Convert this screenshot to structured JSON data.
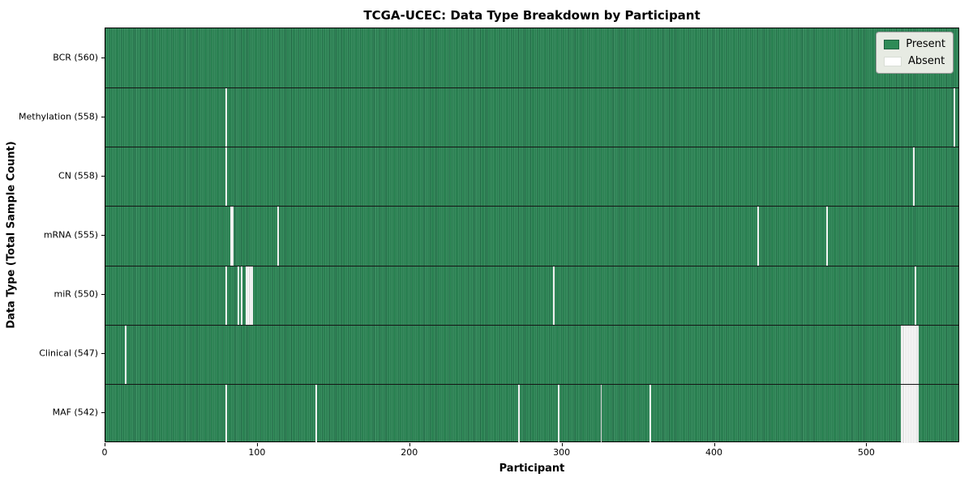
{
  "chart": {
    "title": "TCGA-UCEC: Data Type Breakdown by Participant",
    "xlabel": "Participant",
    "ylabel": "Data Type (Total Sample Count)",
    "legend": {
      "present": "Present",
      "absent": "Absent"
    },
    "x_ticks": [
      0,
      100,
      200,
      300,
      400,
      500
    ],
    "x_axis_max": 561,
    "colors": {
      "present": "#2e8b57",
      "present_edge": "#1e6140",
      "absent": "#ffffff",
      "absent_edge": "#c6c6c6",
      "legend_bg": "#e7ebe3",
      "legend_border": "#9a9a9a"
    }
  },
  "chart_data": {
    "type": "heatmap",
    "title": "TCGA-UCEC: Data Type Breakdown by Participant",
    "xlabel": "Participant",
    "ylabel": "Data Type (Total Sample Count)",
    "legend": [
      "Present",
      "Absent"
    ],
    "n_participants": 560,
    "x_range": [
      0,
      560
    ],
    "grid": false,
    "legend_position": "upper right",
    "rows": [
      {
        "label": "BCR (560)",
        "data_type": "BCR",
        "total": 560,
        "absent_participants": []
      },
      {
        "label": "Methylation (558)",
        "data_type": "Methylation",
        "total": 558,
        "absent_participants": [
          79,
          557
        ]
      },
      {
        "label": "CN (558)",
        "data_type": "CN",
        "total": 558,
        "absent_participants": [
          79,
          530
        ]
      },
      {
        "label": "mRNA (555)",
        "data_type": "mRNA",
        "total": 555,
        "absent_participants": [
          82,
          83,
          113,
          428,
          473
        ]
      },
      {
        "label": "miR (550)",
        "data_type": "miR",
        "total": 550,
        "absent_participants": [
          79,
          87,
          89,
          92,
          93,
          94,
          95,
          96,
          294,
          531
        ]
      },
      {
        "label": "Clinical (547)",
        "data_type": "Clinical",
        "total": 547,
        "absent_participants": [
          13,
          522,
          523,
          524,
          525,
          526,
          527,
          528,
          529,
          530,
          531,
          532,
          533
        ]
      },
      {
        "label": "MAF (542)",
        "data_type": "MAF",
        "total": 542,
        "absent_participants": [
          79,
          138,
          271,
          297,
          325,
          357,
          522,
          523,
          524,
          525,
          526,
          527,
          528,
          529,
          530,
          531,
          532,
          533
        ]
      }
    ]
  }
}
